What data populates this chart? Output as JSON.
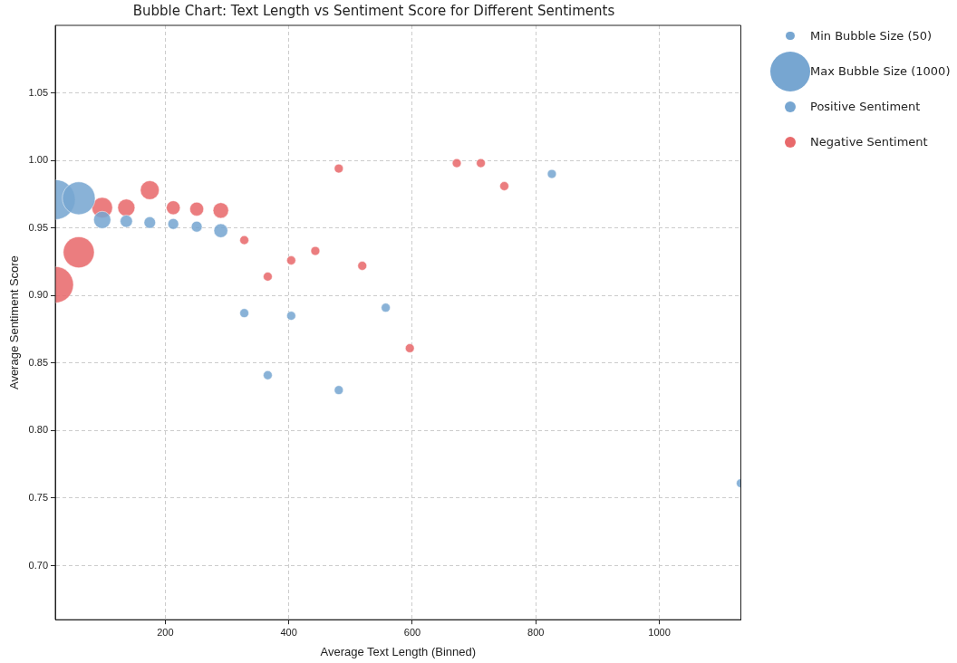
{
  "chart_data": {
    "type": "bubble",
    "title": "Bubble Chart: Text Length vs Sentiment Score for Different Sentiments",
    "xlabel": "Average Text Length (Binned)",
    "ylabel": "Average Sentiment Score",
    "series": [
      {
        "name": "Positive Sentiment",
        "color": "#77a6d1",
        "x": [
          22,
          60,
          98,
          137,
          175,
          213,
          251,
          290,
          328,
          366,
          404,
          481,
          557,
          826,
          1132
        ],
        "values": [
          0.971,
          0.972,
          0.956,
          0.955,
          0.954,
          0.953,
          0.951,
          0.948,
          0.887,
          0.841,
          0.885,
          0.83,
          0.891,
          0.99,
          0.761
        ],
        "sizes": [
          1000,
          677,
          186,
          95,
          84,
          73,
          73,
          121,
          50,
          50,
          50,
          50,
          50,
          50,
          50
        ]
      },
      {
        "name": "Negative Sentiment",
        "color": "#e8696b",
        "x": [
          22,
          60,
          98,
          137,
          175,
          213,
          251,
          290,
          328,
          366,
          404,
          443,
          481,
          519,
          596,
          672,
          711,
          749
        ],
        "values": [
          0.908,
          0.932,
          0.965,
          0.965,
          0.978,
          0.965,
          0.964,
          0.963,
          0.941,
          0.914,
          0.926,
          0.933,
          0.994,
          0.922,
          0.861,
          0.998,
          0.998,
          0.981
        ],
        "sizes": [
          830,
          606,
          267,
          186,
          224,
          121,
          121,
          152,
          50,
          50,
          50,
          50,
          50,
          50,
          50,
          50,
          50,
          50
        ]
      }
    ],
    "size_legend": [
      {
        "value": 50,
        "label": "Min Bubble Size (50)"
      },
      {
        "value": 1000,
        "label": "Max Bubble Size (1000)"
      }
    ],
    "xlim": [
      22,
      1132
    ],
    "xticks": [
      200,
      400,
      600,
      800,
      1000
    ],
    "ylim": [
      0.66,
      1.1
    ],
    "yticks": [
      {
        "value": 0.7,
        "label": "0.70"
      },
      {
        "value": 0.75,
        "label": "0.75"
      },
      {
        "value": 0.8,
        "label": "0.80"
      },
      {
        "value": 0.85,
        "label": "0.85"
      },
      {
        "value": 0.9,
        "label": "0.90"
      },
      {
        "value": 0.95,
        "label": "0.95"
      },
      {
        "value": 1,
        "label": "1.00"
      },
      {
        "value": 1.05,
        "label": "1.05"
      }
    ],
    "grid": true,
    "legend": "right"
  }
}
